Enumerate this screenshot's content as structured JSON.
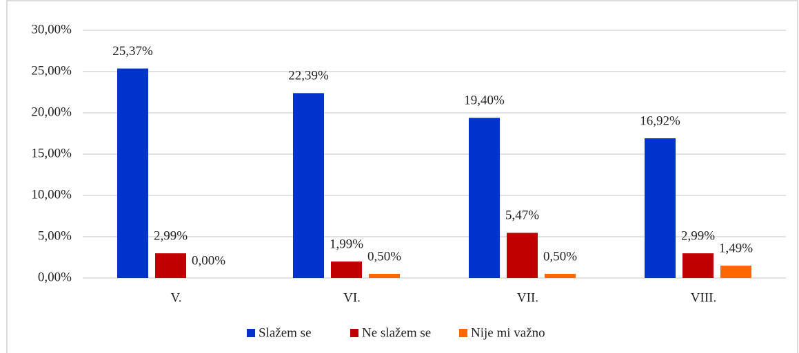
{
  "chart_data": {
    "type": "bar",
    "categories": [
      "V.",
      "VI.",
      "VII.",
      "VIII."
    ],
    "series": [
      {
        "name": "Slažem se",
        "color": "#0033cc",
        "values": [
          25.37,
          22.39,
          19.4,
          16.92
        ],
        "value_labels": [
          "25,37%",
          "22,39%",
          "19,40%",
          "16,92%"
        ]
      },
      {
        "name": "Ne slažem se",
        "color": "#c00000",
        "values": [
          2.99,
          1.99,
          5.47,
          2.99
        ],
        "value_labels": [
          "2,99%",
          "1,99%",
          "5,47%",
          "2,99%"
        ]
      },
      {
        "name": "Nije mi važno",
        "color": "#ff6600",
        "values": [
          0.0,
          0.5,
          0.5,
          1.49
        ],
        "value_labels": [
          "0,00%",
          "0,50%",
          "0,50%",
          "1,49%"
        ]
      }
    ],
    "ylim": [
      0,
      30
    ],
    "yticks": [
      {
        "value": 0,
        "label": "0,00%"
      },
      {
        "value": 5,
        "label": "5,00%"
      },
      {
        "value": 10,
        "label": "10,00%"
      },
      {
        "value": 15,
        "label": "15,00%"
      },
      {
        "value": 20,
        "label": "20,00%"
      },
      {
        "value": 25,
        "label": "25,00%"
      },
      {
        "value": 30,
        "label": "30,00%"
      }
    ],
    "grid": true,
    "legend": "bottom"
  }
}
